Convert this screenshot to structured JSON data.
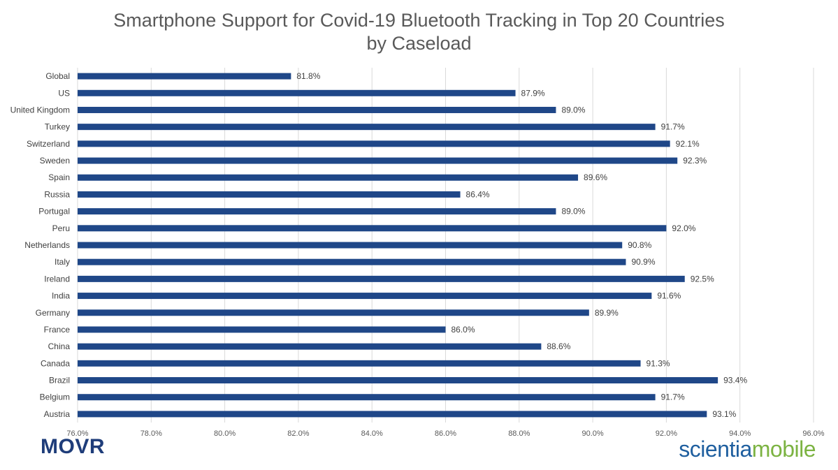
{
  "header": {
    "title_line1": "Smartphone Support for Covid-19 Bluetooth Tracking in Top 20 Countries",
    "title_line2": "by Caseload"
  },
  "logos": {
    "movr": "MOVR",
    "scientia_part1": "scientia",
    "scientia_part2": "mobile",
    "movr_color": "#1f3d7a",
    "scientia_color": "#1f5f9f",
    "mobile_color": "#7cb342"
  },
  "chart_data": {
    "type": "bar",
    "orientation": "horizontal",
    "title": "Smartphone Support for Covid-19 Bluetooth Tracking in Top 20 Countries by Caseload",
    "categories": [
      "Global",
      "US",
      "United Kingdom",
      "Turkey",
      "Switzerland",
      "Sweden",
      "Spain",
      "Russia",
      "Portugal",
      "Peru",
      "Netherlands",
      "Italy",
      "Ireland",
      "India",
      "Germany",
      "France",
      "China",
      "Canada",
      "Brazil",
      "Belgium",
      "Austria"
    ],
    "values": [
      81.8,
      87.9,
      89.0,
      91.7,
      92.1,
      92.3,
      89.6,
      86.4,
      89.0,
      92.0,
      90.8,
      90.9,
      92.5,
      91.6,
      89.9,
      86.0,
      88.6,
      91.3,
      93.4,
      91.7,
      93.1
    ],
    "data_labels": [
      "81.8%",
      "87.9%",
      "89.0%",
      "91.7%",
      "92.1%",
      "92.3%",
      "89.6%",
      "86.4%",
      "89.0%",
      "92.0%",
      "90.8%",
      "90.9%",
      "92.5%",
      "91.6%",
      "89.9%",
      "86.0%",
      "88.6%",
      "91.3%",
      "93.4%",
      "91.7%",
      "93.1%"
    ],
    "xlim": [
      76.0,
      96.0
    ],
    "x_ticks": [
      76.0,
      78.0,
      80.0,
      82.0,
      84.0,
      86.0,
      88.0,
      90.0,
      92.0,
      94.0,
      96.0
    ],
    "x_tick_labels": [
      "76.0%",
      "78.0%",
      "80.0%",
      "82.0%",
      "84.0%",
      "86.0%",
      "88.0%",
      "90.0%",
      "92.0%",
      "94.0%",
      "96.0%"
    ],
    "xlabel": "",
    "ylabel": "",
    "grid": "vertical",
    "legend": "none",
    "bar_color": "#1f4788",
    "grid_color": "#d9d9d9"
  }
}
